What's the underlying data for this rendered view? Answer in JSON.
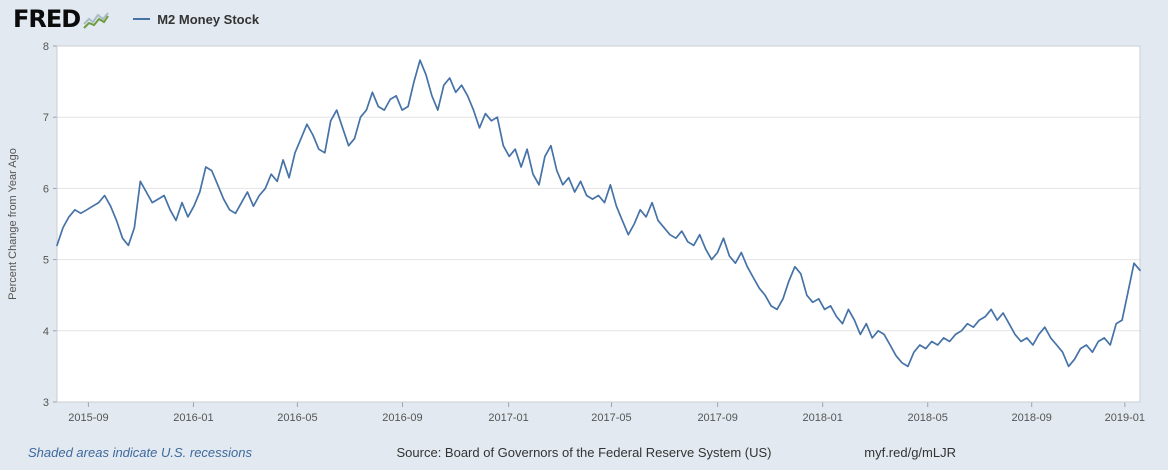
{
  "header": {
    "logo_text": "FRED",
    "legend": {
      "series_label": "M2 Money Stock",
      "series_color": "#4572a7"
    }
  },
  "footer": {
    "recession_note": "Shaded areas indicate U.S. recessions",
    "source": "Source: Board of Governors of the Federal Reserve System (US)",
    "short_url": "myf.red/g/mLJR"
  },
  "chart_data": {
    "type": "line",
    "title": "M2 Money Stock",
    "xlabel": "",
    "ylabel": "Percent Change from Year Ago",
    "ylim": [
      3,
      8
    ],
    "y_ticks": [
      3,
      4,
      5,
      6,
      7,
      8
    ],
    "grid": "horizontal",
    "legend_position": "top-left-header",
    "line_color": "#4572a7",
    "plot_background": "#ffffff",
    "page_background": "#e2e9f0",
    "frequency": "weekly",
    "x_start": "2015-08",
    "x_end": "2019-02",
    "x_ticks": [
      {
        "label": "2015-09",
        "pos": 0.029
      },
      {
        "label": "2016-01",
        "pos": 0.126
      },
      {
        "label": "2016-05",
        "pos": 0.222
      },
      {
        "label": "2016-09",
        "pos": 0.319
      },
      {
        "label": "2017-01",
        "pos": 0.417
      },
      {
        "label": "2017-05",
        "pos": 0.512
      },
      {
        "label": "2017-09",
        "pos": 0.61
      },
      {
        "label": "2018-01",
        "pos": 0.707
      },
      {
        "label": "2018-05",
        "pos": 0.804
      },
      {
        "label": "2018-09",
        "pos": 0.9
      },
      {
        "label": "2019-01",
        "pos": 0.986
      }
    ],
    "values": [
      5.2,
      5.45,
      5.6,
      5.7,
      5.65,
      5.7,
      5.75,
      5.8,
      5.9,
      5.75,
      5.55,
      5.3,
      5.2,
      5.45,
      6.1,
      5.95,
      5.8,
      5.85,
      5.9,
      5.7,
      5.55,
      5.8,
      5.6,
      5.75,
      5.95,
      6.3,
      6.25,
      6.05,
      5.85,
      5.7,
      5.65,
      5.8,
      5.95,
      5.75,
      5.9,
      6.0,
      6.2,
      6.1,
      6.4,
      6.15,
      6.5,
      6.7,
      6.9,
      6.75,
      6.55,
      6.5,
      6.95,
      7.1,
      6.85,
      6.6,
      6.7,
      7.0,
      7.1,
      7.35,
      7.15,
      7.1,
      7.25,
      7.3,
      7.1,
      7.15,
      7.5,
      7.8,
      7.6,
      7.3,
      7.1,
      7.45,
      7.55,
      7.35,
      7.45,
      7.3,
      7.1,
      6.85,
      7.05,
      6.95,
      7.0,
      6.6,
      6.45,
      6.55,
      6.3,
      6.55,
      6.2,
      6.05,
      6.45,
      6.6,
      6.25,
      6.05,
      6.15,
      5.95,
      6.1,
      5.9,
      5.85,
      5.9,
      5.8,
      6.05,
      5.75,
      5.55,
      5.35,
      5.5,
      5.7,
      5.6,
      5.8,
      5.55,
      5.45,
      5.35,
      5.3,
      5.4,
      5.25,
      5.2,
      5.35,
      5.15,
      5.0,
      5.1,
      5.3,
      5.05,
      4.95,
      5.1,
      4.9,
      4.75,
      4.6,
      4.5,
      4.35,
      4.3,
      4.45,
      4.7,
      4.9,
      4.8,
      4.5,
      4.4,
      4.45,
      4.3,
      4.35,
      4.2,
      4.1,
      4.3,
      4.15,
      3.95,
      4.1,
      3.9,
      4.0,
      3.95,
      3.8,
      3.65,
      3.55,
      3.5,
      3.7,
      3.8,
      3.75,
      3.85,
      3.8,
      3.9,
      3.85,
      3.95,
      4.0,
      4.1,
      4.05,
      4.15,
      4.2,
      4.3,
      4.15,
      4.25,
      4.1,
      3.95,
      3.85,
      3.9,
      3.8,
      3.95,
      4.05,
      3.9,
      3.8,
      3.7,
      3.5,
      3.6,
      3.75,
      3.8,
      3.7,
      3.85,
      3.9,
      3.8,
      4.1,
      4.15,
      4.55,
      4.95,
      4.85
    ]
  }
}
